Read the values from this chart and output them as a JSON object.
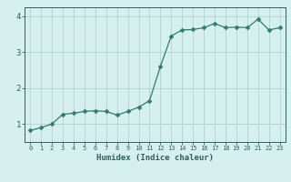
{
  "x": [
    0,
    1,
    2,
    3,
    4,
    5,
    6,
    7,
    8,
    9,
    10,
    11,
    12,
    13,
    14,
    15,
    16,
    17,
    18,
    19,
    20,
    21,
    22,
    23
  ],
  "y": [
    0.82,
    0.9,
    1.0,
    1.27,
    1.3,
    1.35,
    1.37,
    1.35,
    1.25,
    1.35,
    1.47,
    1.65,
    2.6,
    3.45,
    3.62,
    3.63,
    3.68,
    3.8,
    3.68,
    3.7,
    3.68,
    3.92,
    3.62,
    3.68
  ],
  "line_color": "#2e7d6e",
  "marker": "D",
  "marker_size": 2.5,
  "bg_color": "#d6f0ef",
  "grid_color": "#afd4d0",
  "tick_color": "#2e6060",
  "label_color": "#2e6060",
  "xlabel": "Humidex (Indice chaleur)",
  "xlim": [
    -0.5,
    23.5
  ],
  "ylim": [
    0.5,
    4.25
  ],
  "yticks": [
    1,
    2,
    3,
    4
  ],
  "xticks": [
    0,
    1,
    2,
    3,
    4,
    5,
    6,
    7,
    8,
    9,
    10,
    11,
    12,
    13,
    14,
    15,
    16,
    17,
    18,
    19,
    20,
    21,
    22,
    23
  ]
}
